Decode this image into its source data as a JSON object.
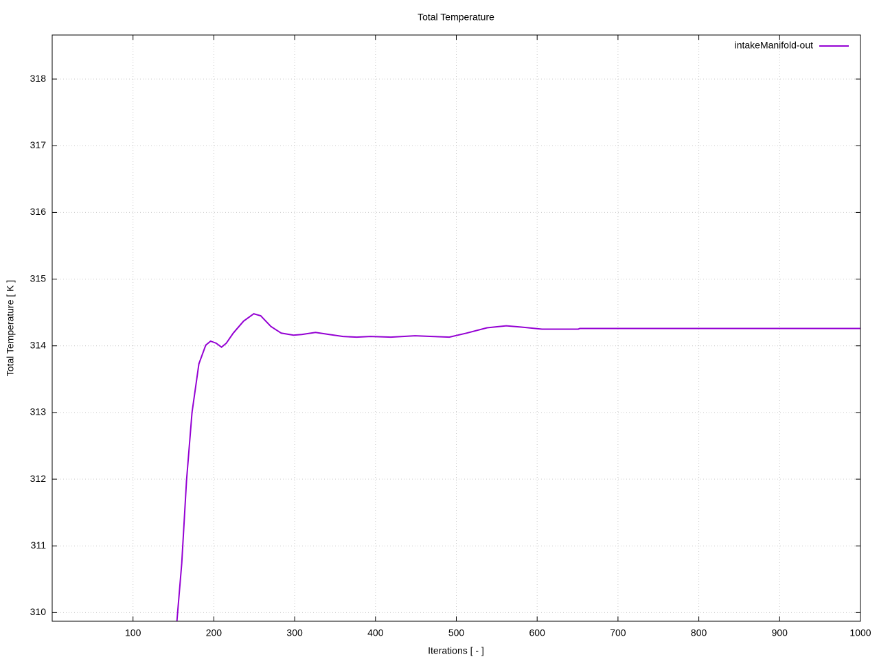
{
  "chart_data": {
    "type": "line",
    "title": "Total Temperature",
    "x_label": "Iterations [ - ]",
    "y_label": "Total Temperature [ K ]",
    "xlim": [
      0,
      1000
    ],
    "xticks": [
      100,
      200,
      300,
      400,
      500,
      600,
      700,
      800,
      900,
      1000
    ],
    "ylim": [
      309.87,
      318.66
    ],
    "yticks": [
      310,
      311,
      312,
      313,
      314,
      315,
      316,
      317,
      318
    ],
    "grid": true,
    "legend": "top-right",
    "series": [
      {
        "name": "intakeManifold-out",
        "color": "#9400d3",
        "x": [
          154.3,
          160.3,
          166.2,
          173,
          181.5,
          190,
          196,
          202.7,
          209.5,
          215.5,
          224,
          236.8,
          249.4,
          258,
          270.6,
          283.4,
          298.6,
          308.8,
          325.8,
          342.7,
          359.7,
          376.7,
          393.7,
          419,
          448.9,
          470,
          491.3,
          512.5,
          538,
          561.8,
          580.5,
          606,
          651,
          652.7,
          1000
        ],
        "values": [
          309.87,
          310.74,
          311.98,
          313.0,
          313.73,
          314.01,
          314.07,
          314.04,
          313.98,
          314.04,
          314.19,
          314.37,
          314.48,
          314.45,
          314.29,
          314.19,
          314.16,
          314.17,
          314.2,
          314.17,
          314.14,
          314.13,
          314.14,
          314.13,
          314.15,
          314.14,
          314.13,
          314.19,
          314.27,
          314.3,
          314.28,
          314.25,
          314.25,
          314.26,
          314.26
        ]
      }
    ]
  }
}
